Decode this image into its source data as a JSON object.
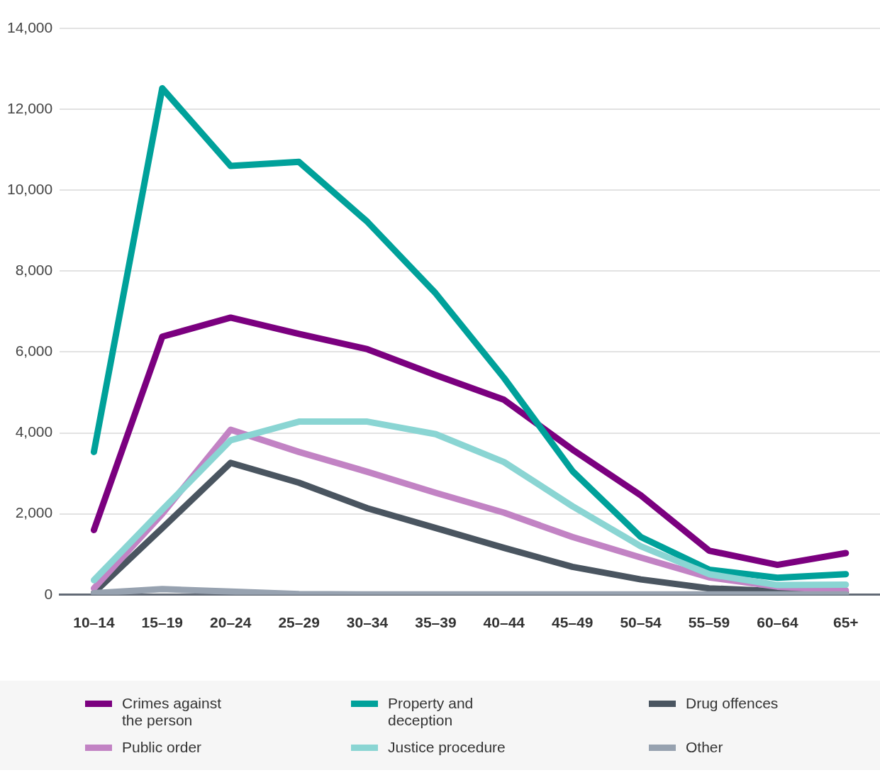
{
  "chart_data": {
    "type": "line",
    "categories": [
      "10–14",
      "15–19",
      "20–24",
      "25–29",
      "30–34",
      "35–39",
      "40–44",
      "45–49",
      "50–54",
      "55–59",
      "60–64",
      "65+"
    ],
    "ylim": [
      0,
      14000
    ],
    "yticks": [
      {
        "value": 0,
        "label": "0"
      },
      {
        "value": 2000,
        "label": "2,000"
      },
      {
        "value": 4000,
        "label": "4,000"
      },
      {
        "value": 6000,
        "label": "6,000"
      },
      {
        "value": 8000,
        "label": "8,000"
      },
      {
        "value": 10000,
        "label": "10,000"
      },
      {
        "value": 12000,
        "label": "12,000"
      },
      {
        "value": 14000,
        "label": "14,000"
      }
    ],
    "grid": "y",
    "legend": "bottom",
    "marker": "none",
    "line_style": "solid",
    "series": [
      {
        "name": "Crimes against the person",
        "color": "#7b007f",
        "values": [
          1600,
          6380,
          6850,
          6450,
          6070,
          5430,
          4820,
          3590,
          2460,
          1090,
          740,
          1030
        ]
      },
      {
        "name": "Property and deception",
        "color": "#00a19a",
        "values": [
          3530,
          12520,
          10600,
          10700,
          9220,
          7450,
          5360,
          3060,
          1430,
          620,
          420,
          510
        ]
      },
      {
        "name": "Drug offences",
        "color": "#4a5560",
        "values": [
          50,
          1650,
          3260,
          2770,
          2140,
          1650,
          1160,
          690,
          380,
          160,
          90,
          70
        ]
      },
      {
        "name": "Public order",
        "color": "#c283c4",
        "values": [
          160,
          2000,
          4080,
          3530,
          3040,
          2520,
          2030,
          1430,
          920,
          430,
          200,
          110
        ]
      },
      {
        "name": "Justice procedure",
        "color": "#8ad5d3",
        "values": [
          360,
          2100,
          3820,
          4280,
          4280,
          3970,
          3280,
          2190,
          1200,
          510,
          240,
          250
        ]
      },
      {
        "name": "Other",
        "color": "#97a2b0",
        "values": [
          40,
          140,
          80,
          20,
          10,
          10,
          10,
          10,
          10,
          10,
          10,
          10
        ]
      }
    ]
  }
}
